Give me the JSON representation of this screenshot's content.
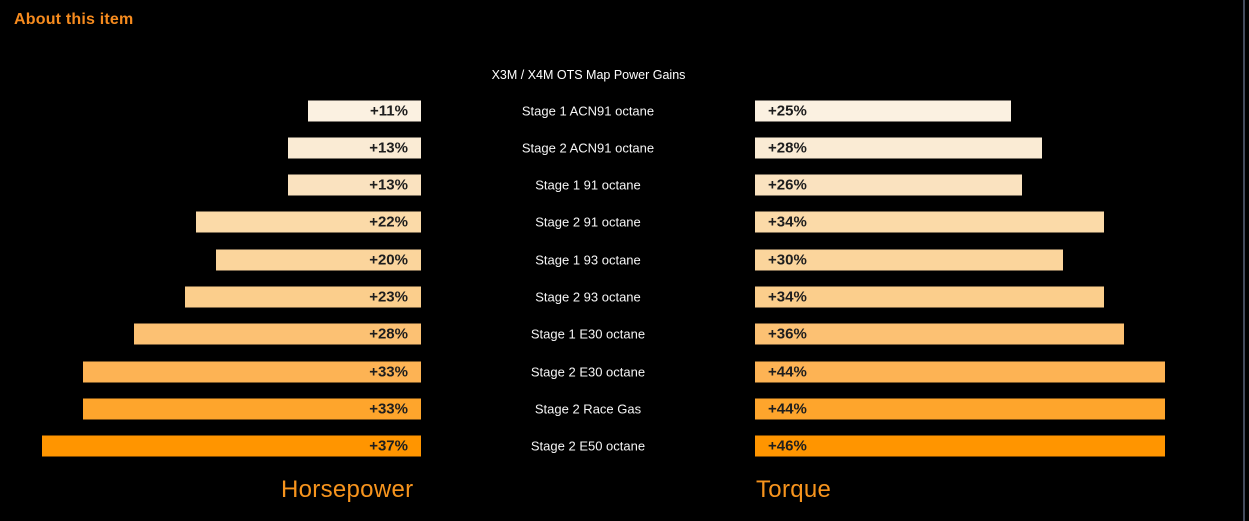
{
  "page": {
    "section_heading": "About this item",
    "background_color": "#000000",
    "heading_color": "#F68B1E",
    "accent_color": "#F7941D",
    "scrollbar_color": "#434B5C"
  },
  "chart_data": {
    "type": "bar",
    "orientation": "horizontal-mirrored",
    "title": "X3M / X4M OTS Map Power Gains",
    "title_color": "#FFFFFF",
    "categories": [
      "Stage 1 ACN91 octane",
      "Stage 2 ACN91 octane",
      "Stage 1 91 octane",
      "Stage 2 91 octane",
      "Stage 1 93 octane",
      "Stage 2 93 octane",
      "Stage 1 E30 octane",
      "Stage 2 E30 octane",
      "Stage 2 Race Gas",
      "Stage 2 E50 octane"
    ],
    "series": [
      {
        "name": "Horsepower",
        "values": [
          11,
          13,
          13,
          22,
          20,
          23,
          28,
          33,
          33,
          37
        ],
        "labels": [
          "+11%",
          "+13%",
          "+13%",
          "+22%",
          "+20%",
          "+23%",
          "+28%",
          "+33%",
          "+33%",
          "+37%"
        ]
      },
      {
        "name": "Torque",
        "values": [
          25,
          28,
          26,
          34,
          30,
          34,
          36,
          44,
          44,
          46
        ],
        "labels": [
          "+25%",
          "+28%",
          "+26%",
          "+34%",
          "+30%",
          "+34%",
          "+36%",
          "+44%",
          "+44%",
          "+46%"
        ]
      }
    ],
    "unit": "%",
    "value_label_format": "+{value}%",
    "row_colors": [
      "#FBF1E1",
      "#FAEBD4",
      "#FAE2BF",
      "#FBDAA8",
      "#FBD59C",
      "#FBCE8C",
      "#FCC173",
      "#FDB354",
      "#FEA52C",
      "#FF9500"
    ],
    "bar_text_color": "#1E1E1E",
    "category_label_color": "#F5F5F5",
    "axis_labels": {
      "left": "Horsepower",
      "right": "Torque"
    },
    "axis_label_color": "#F7941D",
    "display_scale_note": "bars capped at 40% display width",
    "max_display_pct": 40,
    "legend_position": "bottom",
    "grid": false
  }
}
